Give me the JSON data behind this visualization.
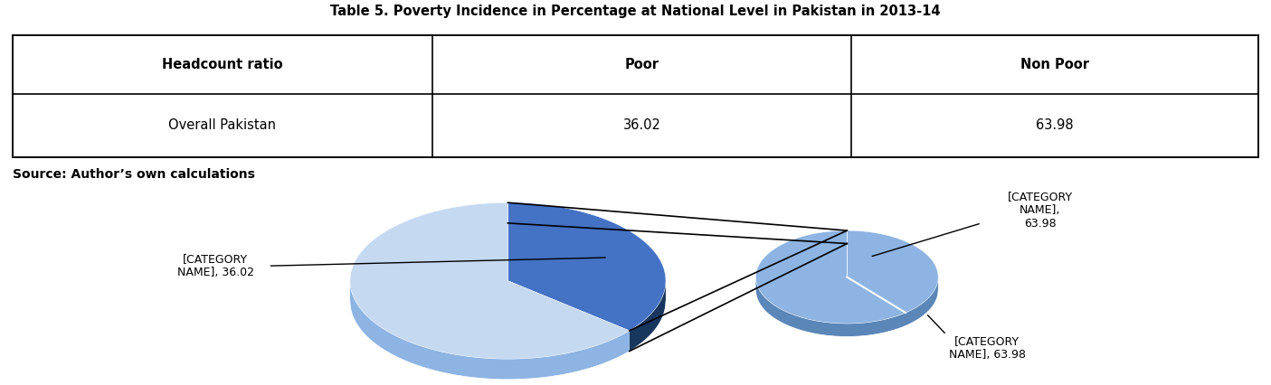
{
  "title": "Table 5. Poverty Incidence in Percentage at National Level in Pakistan in 2013-14",
  "source_text": "Source: Author’s own calculations",
  "table_headers": [
    "Headcount ratio",
    "Poor",
    "Non Poor"
  ],
  "table_row": [
    "Overall Pakistan",
    "36.02",
    "63.98"
  ],
  "pie_values": [
    36.02,
    63.98
  ],
  "pie_label1": "[CATEGORY\nNAME], 36.02",
  "pie_label2": "[CATEGORY\nNAME],\n63.98",
  "pie_label3": "[CATEGORY\nNAME], 63.98",
  "color_dark_blue_top": "#4472C4",
  "color_light_blue_top": "#C5D9F1",
  "color_dark_blue_side": "#17375E",
  "color_light_blue_side": "#8DB4E2",
  "color_small_pie_top": "#8DB4E2",
  "color_small_pie_side": "#5A86B8",
  "color_small_pie_line": "#C5D9F1",
  "background_color": "#FFFFFF",
  "fig_width": 14.05,
  "fig_height": 4.26
}
